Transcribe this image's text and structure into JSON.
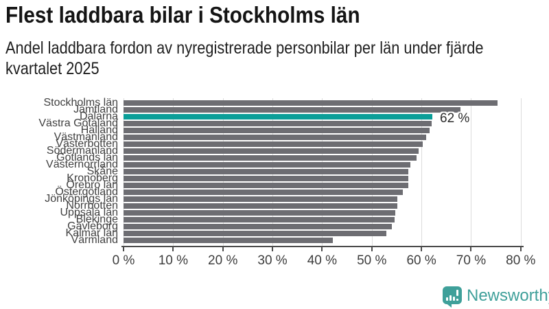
{
  "header": {
    "title": "Flest laddbara bilar i Stockholms län",
    "subtitle_lines": [
      "Andel laddbara fordon av nyregistrerade personbilar per län under fjärde",
      "kvartalet 2025"
    ]
  },
  "chart_data": {
    "type": "bar",
    "orientation": "horizontal",
    "title": "Flest laddbara bilar i Stockholms län",
    "subtitle": "Andel laddbara fordon av nyregistrerade personbilar per län under fjärde kvartalet 2025",
    "categories": [
      "Stockholms län",
      "Jämtland",
      "Dalarna",
      "Västra Götaland",
      "Halland",
      "Västmanland",
      "Västerbotten",
      "Södermanland",
      "Gotlands län",
      "Västernorrland",
      "Skåne",
      "Kronoberg",
      "Örebro län",
      "Östergötland",
      "Jönköpings län",
      "Norrbotten",
      "Uppsala län",
      "Blekinge",
      "Gävleborg",
      "Kalmar län",
      "Värmland"
    ],
    "values": [
      75.3,
      67.8,
      62.2,
      62.0,
      61.6,
      61.0,
      60.3,
      59.4,
      59.0,
      57.8,
      57.3,
      57.3,
      57.3,
      56.3,
      55.2,
      55.2,
      54.8,
      54.6,
      54.0,
      53.0,
      42.2
    ],
    "unit": "%",
    "xlim": [
      0,
      80
    ],
    "x_tick_labels": [
      "0 %",
      "10 %",
      "20 %",
      "30 %",
      "40 %",
      "50 %",
      "60 %",
      "70 %",
      "80 %"
    ],
    "grid": true,
    "bar_color": "#6D6D72",
    "gridline_color": "#DCDCDC",
    "highlight": {
      "category": "Dalarna",
      "index": 2,
      "value": 62,
      "label": "62 %",
      "color": "#0A9E98"
    }
  },
  "footer": {
    "brand": "Newsworthy",
    "brand_color": "#3FA09A",
    "logo_icon": "bar-chart-speech-bubble"
  }
}
